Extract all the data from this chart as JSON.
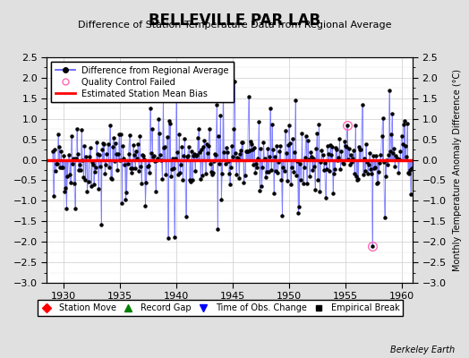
{
  "title": "BELLEVILLE PAR LAB",
  "subtitle": "Difference of Station Temperature Data from Regional Average",
  "ylabel_right": "Monthly Temperature Anomaly Difference (°C)",
  "credit": "Berkeley Earth",
  "xlim": [
    1928.5,
    1961.0
  ],
  "ylim": [
    -3.0,
    2.5
  ],
  "yticks": [
    -3,
    -2.5,
    -2,
    -1.5,
    -1,
    -0.5,
    0,
    0.5,
    1,
    1.5,
    2,
    2.5
  ],
  "xticks": [
    1930,
    1935,
    1940,
    1945,
    1950,
    1955,
    1960
  ],
  "bias_line": 0.0,
  "bias_color": "#ff0000",
  "series_color": "#5555ff",
  "line_color": "#7777ff",
  "marker_color": "#000000",
  "qc_color": "#ff69b4",
  "bg_color": "#e0e0e0",
  "plot_bg": "#ffffff",
  "seed": 42
}
